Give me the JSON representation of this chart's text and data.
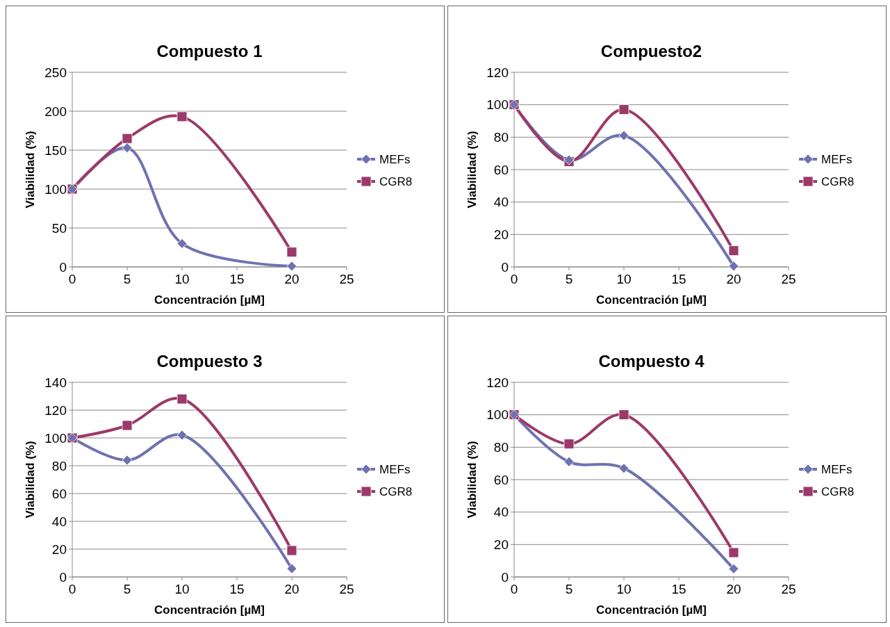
{
  "chart_data": [
    {
      "type": "line",
      "title": "Compuesto 1",
      "xlabel": "Concentración [µM]",
      "ylabel": "Viabilidad (%)",
      "x": [
        0,
        5,
        10,
        20
      ],
      "xlim": [
        0,
        25
      ],
      "xticks": [
        0,
        5,
        10,
        15,
        20,
        25
      ],
      "ylim": [
        0,
        250
      ],
      "yticks": [
        0,
        50,
        100,
        150,
        200,
        250
      ],
      "grid": "y",
      "legend": "right",
      "series": [
        {
          "name": "MEFs",
          "color": "#6e72b0",
          "marker": "diamond",
          "values": [
            100,
            153,
            30,
            1
          ]
        },
        {
          "name": "CGR8",
          "color": "#9b3a68",
          "marker": "square",
          "values": [
            100,
            165,
            193,
            19
          ]
        }
      ]
    },
    {
      "type": "line",
      "title": "Compuesto2",
      "xlabel": "Concentración [µM]",
      "ylabel": "Viabilidad (%)",
      "x": [
        0,
        5,
        10,
        20
      ],
      "xlim": [
        0,
        25
      ],
      "xticks": [
        0,
        5,
        10,
        15,
        20,
        25
      ],
      "ylim": [
        0,
        120
      ],
      "yticks": [
        0,
        20,
        40,
        60,
        80,
        100,
        120
      ],
      "grid": "y",
      "legend": "right",
      "series": [
        {
          "name": "MEFs",
          "color": "#6e72b0",
          "marker": "diamond",
          "values": [
            100,
            66,
            81,
            0.5
          ]
        },
        {
          "name": "CGR8",
          "color": "#9b3a68",
          "marker": "square",
          "values": [
            100,
            65,
            97,
            10
          ]
        }
      ]
    },
    {
      "type": "line",
      "title": "Compuesto 3",
      "xlabel": "Concentración [µM]",
      "ylabel": "Viabilidad (%)",
      "x": [
        0,
        5,
        10,
        20
      ],
      "xlim": [
        0,
        25
      ],
      "xticks": [
        0,
        5,
        10,
        15,
        20,
        25
      ],
      "ylim": [
        0,
        140
      ],
      "yticks": [
        0,
        20,
        40,
        60,
        80,
        100,
        120,
        140
      ],
      "grid": "y",
      "legend": "right",
      "series": [
        {
          "name": "MEFs",
          "color": "#6e72b0",
          "marker": "diamond",
          "values": [
            100,
            84,
            102,
            6
          ]
        },
        {
          "name": "CGR8",
          "color": "#9b3a68",
          "marker": "square",
          "values": [
            100,
            109,
            128,
            19
          ]
        }
      ]
    },
    {
      "type": "line",
      "title": "Compuesto 4",
      "xlabel": "Concentración [µM]",
      "ylabel": "Viabilidad (%)",
      "x": [
        0,
        5,
        10,
        20
      ],
      "xlim": [
        0,
        25
      ],
      "xticks": [
        0,
        5,
        10,
        15,
        20,
        25
      ],
      "ylim": [
        0,
        120
      ],
      "yticks": [
        0,
        20,
        40,
        60,
        80,
        100,
        120
      ],
      "grid": "y",
      "legend": "right",
      "series": [
        {
          "name": "MEFs",
          "color": "#6e72b0",
          "marker": "diamond",
          "values": [
            100,
            71,
            67,
            5
          ]
        },
        {
          "name": "CGR8",
          "color": "#9b3a68",
          "marker": "square",
          "values": [
            100,
            82,
            100,
            15
          ]
        }
      ]
    }
  ]
}
